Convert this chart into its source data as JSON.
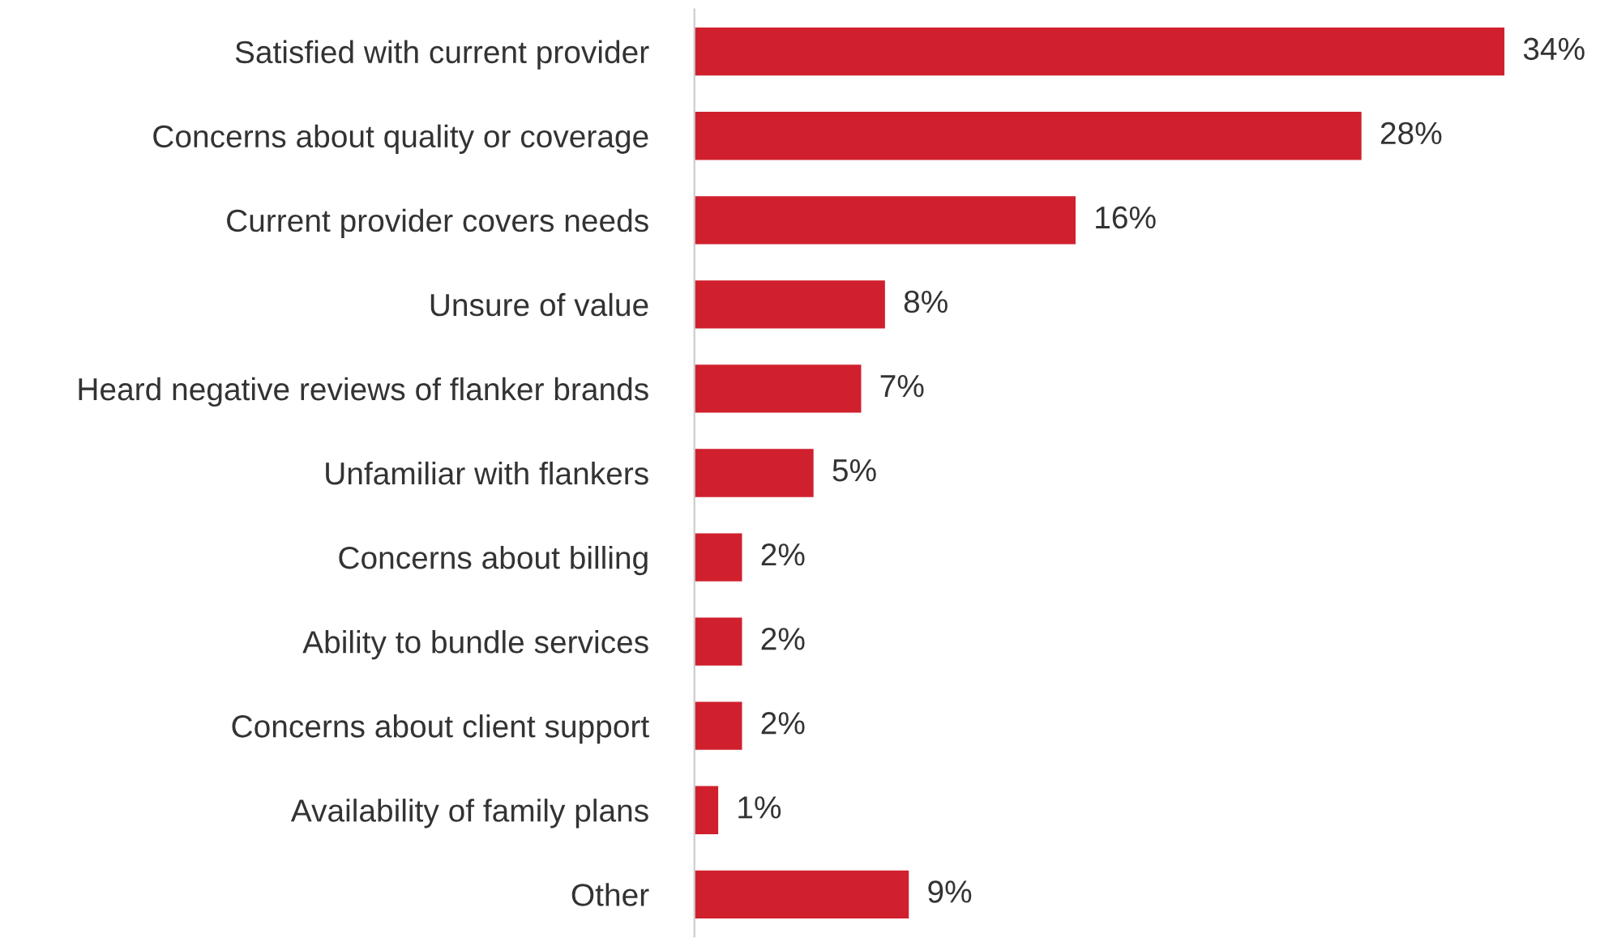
{
  "chart_data": {
    "type": "bar",
    "orientation": "horizontal",
    "categories": [
      "Satisfied with current provider",
      "Concerns about quality or coverage",
      "Current provider covers needs",
      "Unsure of value",
      "Heard negative reviews of flanker brands",
      "Unfamiliar with flankers",
      "Concerns about billing",
      "Ability to bundle services",
      "Concerns about client support",
      "Availability of family plans",
      "Other"
    ],
    "values": [
      34,
      28,
      16,
      8,
      7,
      5,
      2,
      2,
      2,
      1,
      9
    ],
    "color": "#d0202e",
    "value_labels": [
      "34%",
      "28%",
      "16%",
      "8%",
      "7%",
      "5%",
      "2%",
      "2%",
      "2%",
      "1%",
      "9%"
    ],
    "grid": false,
    "legend": false
  }
}
